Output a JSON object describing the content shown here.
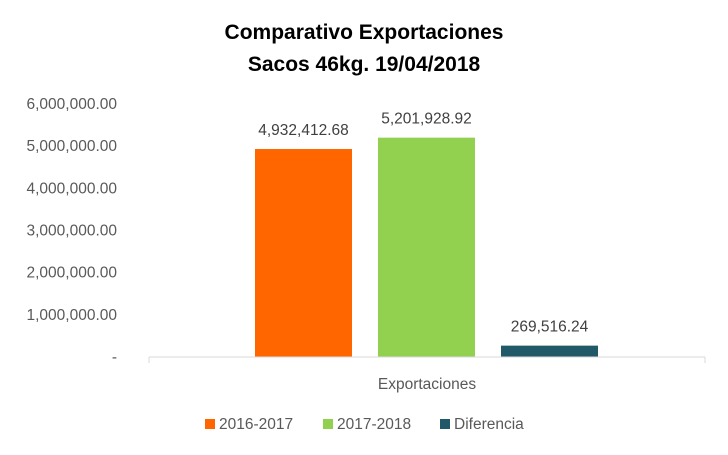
{
  "chart_data": {
    "type": "bar",
    "title_lines": [
      "Comparativo  Exportaciones",
      "Sacos 46kg. 19/04/2018"
    ],
    "categories": [
      "Exportaciones"
    ],
    "series": [
      {
        "name": "2016-2017",
        "values": [
          4932412.68
        ],
        "label": "4,932,412.68",
        "color": "#ff6600"
      },
      {
        "name": "2017-2018",
        "values": [
          5201928.92
        ],
        "label": "5,201,928.92",
        "color": "#92d050"
      },
      {
        "name": "Diferencia",
        "values": [
          269516.24
        ],
        "label": "269,516.24",
        "color": "#215968"
      }
    ],
    "ylim": [
      0,
      6000000
    ],
    "y_ticks": [
      {
        "value": 0,
        "label": "-"
      },
      {
        "value": 1000000,
        "label": "1,000,000.00"
      },
      {
        "value": 2000000,
        "label": "2,000,000.00"
      },
      {
        "value": 3000000,
        "label": "3,000,000.00"
      },
      {
        "value": 4000000,
        "label": "4,000,000.00"
      },
      {
        "value": 5000000,
        "label": "5,000,000.00"
      },
      {
        "value": 6000000,
        "label": "6,000,000.00"
      }
    ],
    "grid": false,
    "legend": "bottom",
    "axis_color": "#d9d9d9"
  }
}
